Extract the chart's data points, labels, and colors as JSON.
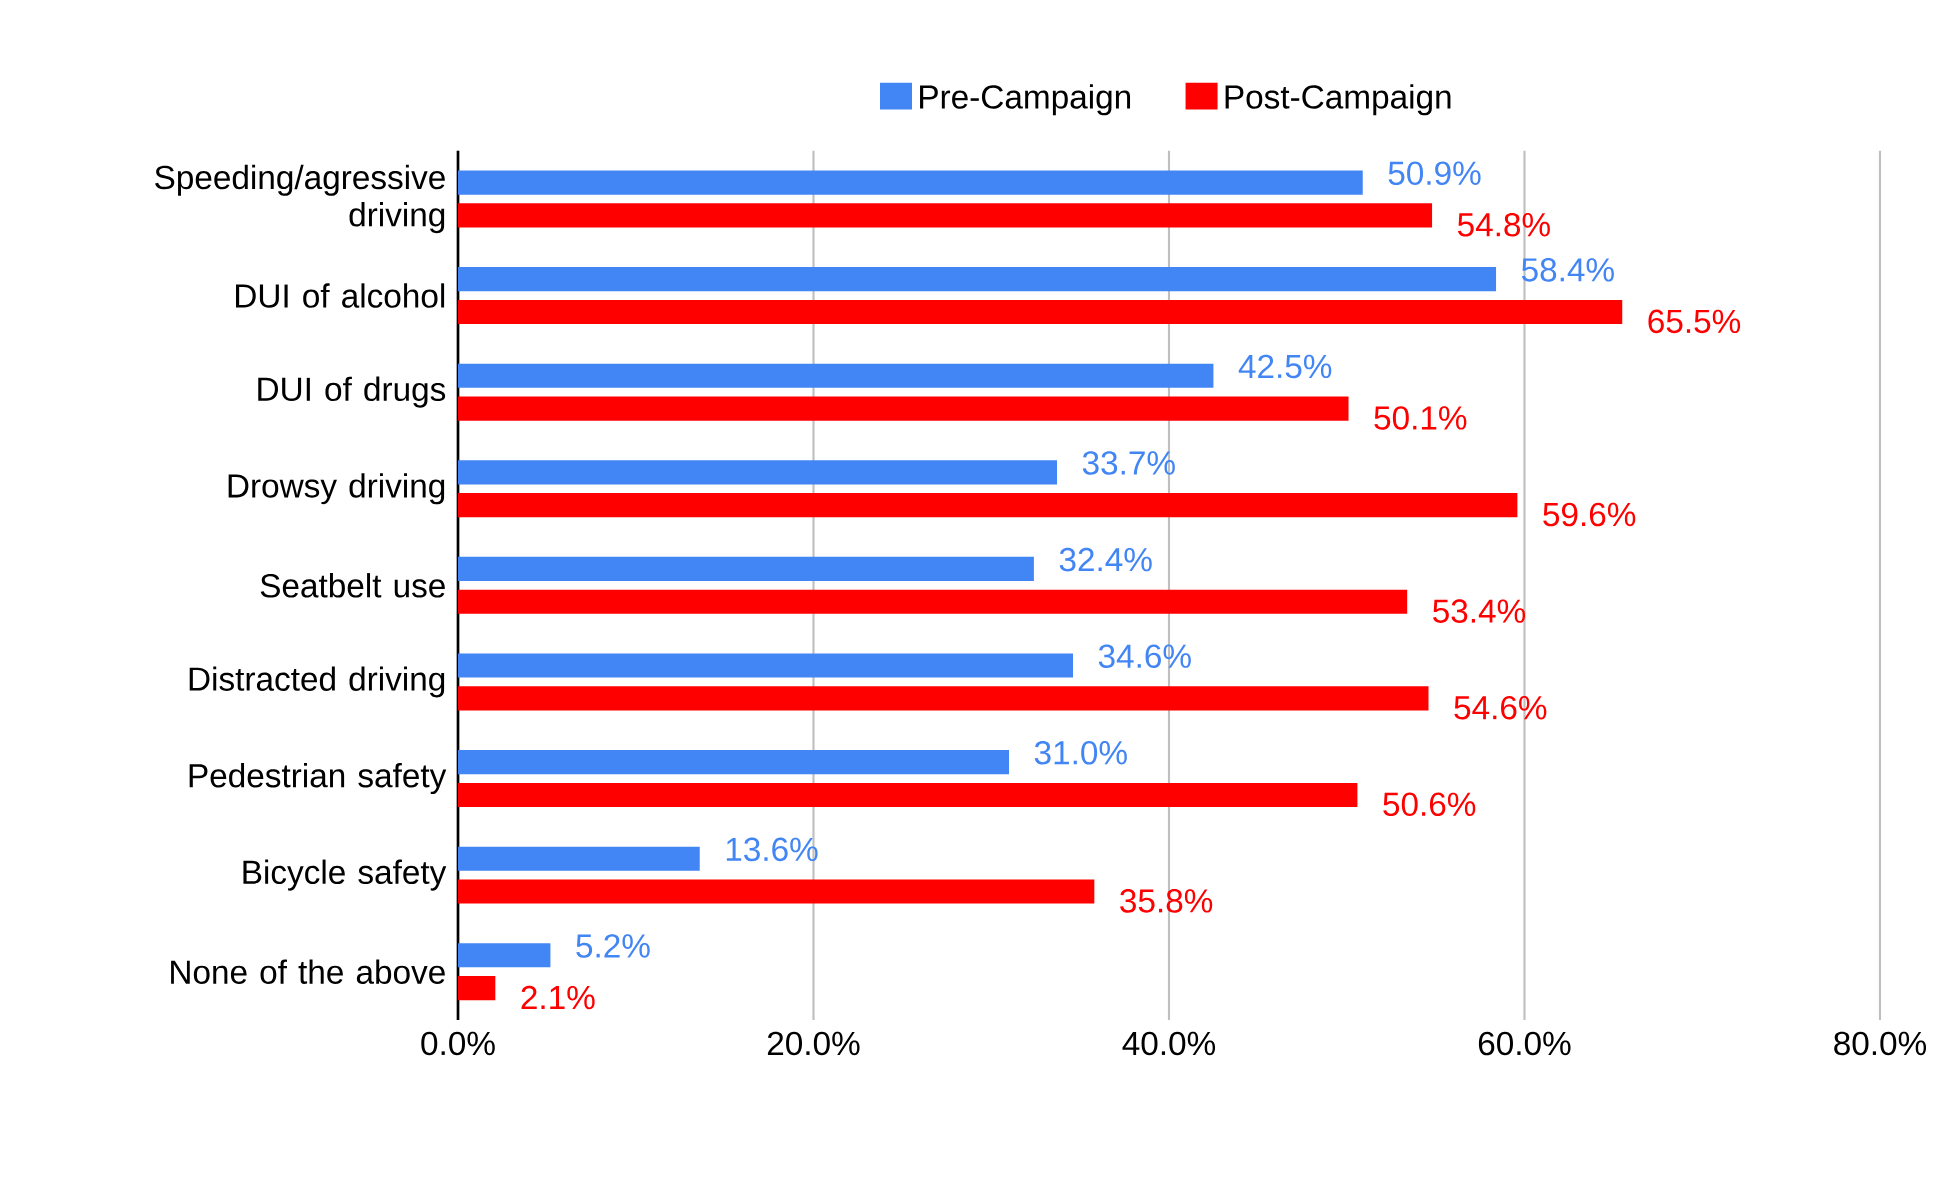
{
  "chart_data": {
    "type": "bar",
    "orientation": "horizontal",
    "categories": [
      "Speeding/agressive driving",
      "DUI of alcohol",
      "DUI of drugs",
      "Drowsy driving",
      "Seatbelt use",
      "Distracted driving",
      "Pedestrian safety",
      "Bicycle safety",
      "None of the above"
    ],
    "series": [
      {
        "name": "Pre-Campaign",
        "color": "#4285f4",
        "values": [
          50.9,
          58.4,
          42.5,
          33.7,
          32.4,
          34.6,
          31.0,
          13.6,
          5.2
        ],
        "value_labels": [
          "50.9%",
          "58.4%",
          "42.5%",
          "33.7%",
          "32.4%",
          "34.6%",
          "31.0%",
          "13.6%",
          "5.2%"
        ]
      },
      {
        "name": "Post-Campaign",
        "color": "#ff0000",
        "values": [
          54.8,
          65.5,
          50.1,
          59.6,
          53.4,
          54.6,
          50.6,
          35.8,
          2.1
        ],
        "value_labels": [
          "54.8%",
          "65.5%",
          "50.1%",
          "59.6%",
          "53.4%",
          "54.6%",
          "50.6%",
          "35.8%",
          "2.1%"
        ]
      }
    ],
    "xlim": [
      0,
      80
    ],
    "xticks": [
      {
        "value": 0,
        "label": "0.0%"
      },
      {
        "value": 20,
        "label": "20.0%"
      },
      {
        "value": 40,
        "label": "40.0%"
      },
      {
        "value": 60,
        "label": "60.0%"
      },
      {
        "value": 80,
        "label": "80.0%"
      }
    ],
    "grid": "x",
    "legend": "top"
  }
}
